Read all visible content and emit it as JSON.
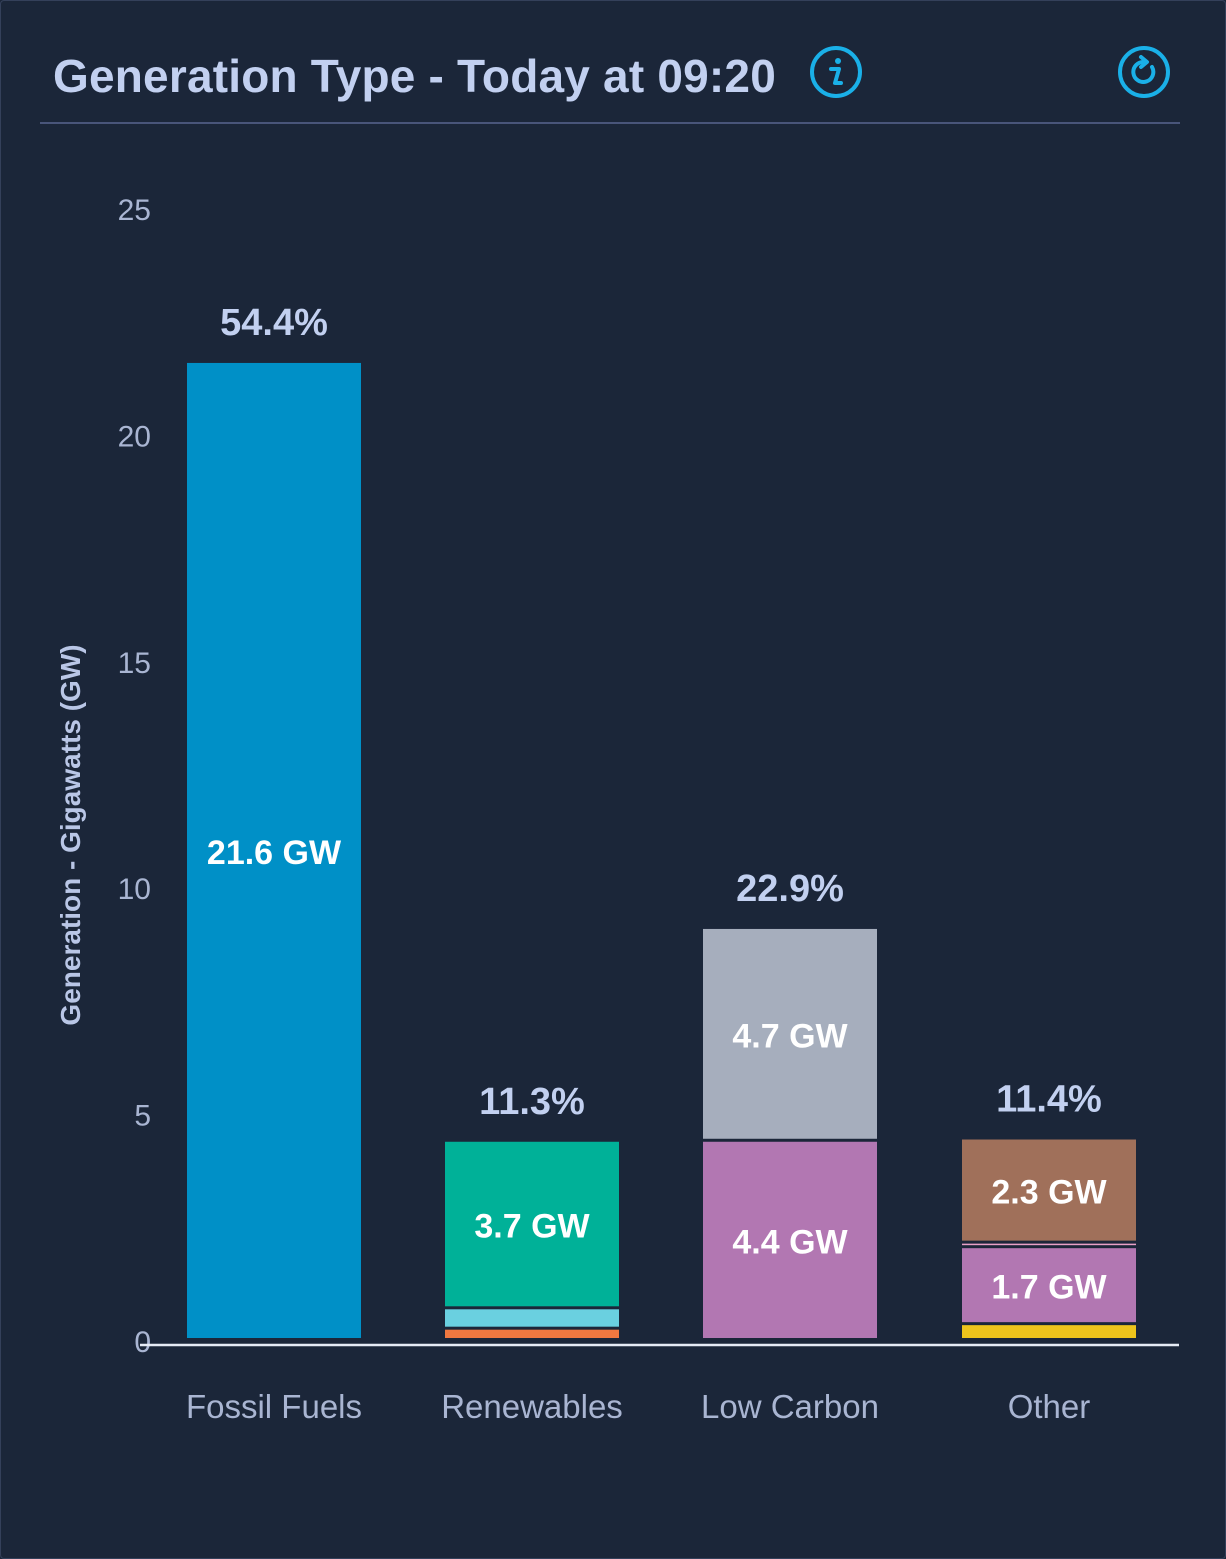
{
  "header": {
    "title": "Generation Type - Today at 09:20",
    "info_icon": "info-icon",
    "refresh_icon": "refresh-icon",
    "accent_color": "#1ab0e8"
  },
  "chart_data": {
    "type": "bar",
    "stacked": true,
    "ylabel": "Generation - Gigawatts (GW)",
    "ylim": [
      0,
      25
    ],
    "yticks": [
      0,
      5,
      10,
      15,
      20,
      25
    ],
    "grid": false,
    "categories": [
      "Fossil Fuels",
      "Renewables",
      "Low Carbon",
      "Other"
    ],
    "totals_pct": [
      "54.4%",
      "11.3%",
      "22.9%",
      "11.4%"
    ],
    "stacks": [
      [
        {
          "value": 21.6,
          "label": "21.6 GW",
          "color": "#0090c7"
        }
      ],
      [
        {
          "value": 0.25,
          "label": "",
          "color": "#f07840"
        },
        {
          "value": 0.45,
          "label": "",
          "color": "#6ad0e0"
        },
        {
          "value": 3.7,
          "label": "3.7 GW",
          "color": "#00b198"
        }
      ],
      [
        {
          "value": 4.4,
          "label": "4.4 GW",
          "color": "#b277b2"
        },
        {
          "value": 4.7,
          "label": "4.7 GW",
          "color": "#a6aebd"
        }
      ],
      [
        {
          "value": 0.35,
          "label": "",
          "color": "#eec41c"
        },
        {
          "value": 1.7,
          "label": "1.7 GW",
          "color": "#b277b2"
        },
        {
          "value": 0.1,
          "label": "",
          "color": "#e8a0c8"
        },
        {
          "value": 2.3,
          "label": "2.3 GW",
          "color": "#a0705a"
        }
      ]
    ]
  }
}
